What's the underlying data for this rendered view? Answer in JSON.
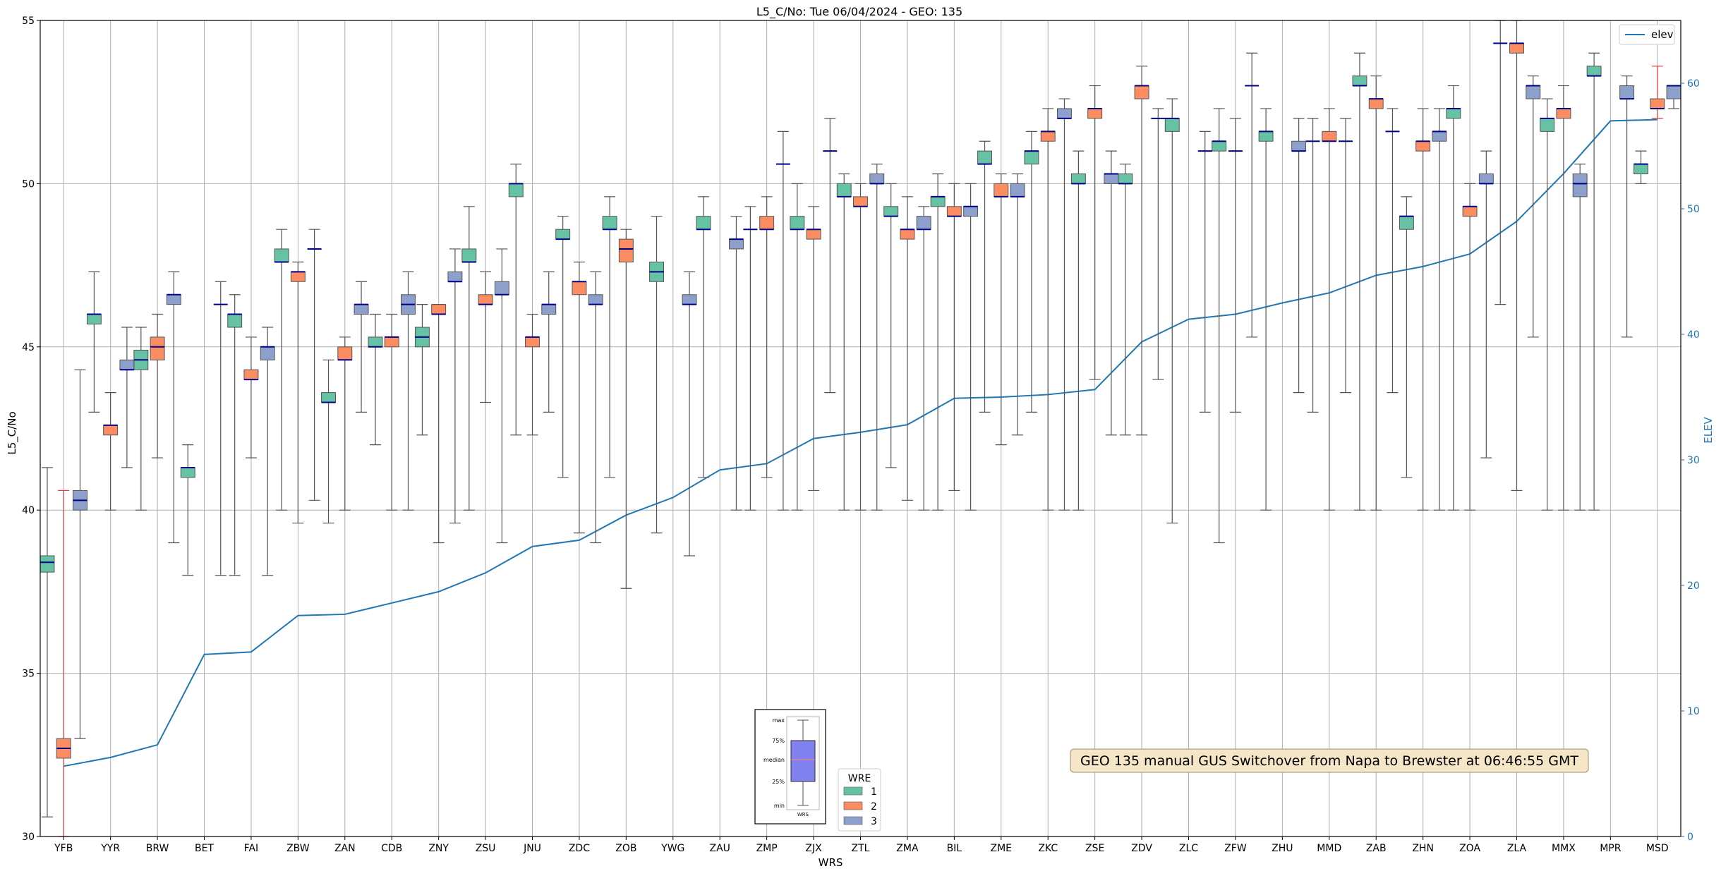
{
  "chart_data": {
    "type": "box",
    "title": "L5_C/No: Tue 06/04/2024 - GEO: 135",
    "xlabel": "WRS",
    "ylabel": "L5_C/No",
    "y2label": "ELEV",
    "ylim": [
      30,
      55
    ],
    "y2lim": [
      0,
      65
    ],
    "yticks": [
      "30",
      "35",
      "40",
      "45",
      "50",
      "55"
    ],
    "y2ticks": [
      "0",
      "10",
      "20",
      "30",
      "40",
      "50",
      "60"
    ],
    "grid": true,
    "colors": {
      "wre1": "#66c2a5",
      "wre2": "#fc8d62",
      "wre3": "#8da0cb",
      "elev": "#1f77b4",
      "median": "#00008b",
      "outlier_whisker": "#e53935",
      "axis_right": "#1f77b4"
    },
    "categories": [
      "YFB",
      "YYR",
      "BRW",
      "BET",
      "FAI",
      "ZBW",
      "ZAN",
      "CDB",
      "ZNY",
      "ZSU",
      "JNU",
      "ZDC",
      "ZOB",
      "YWG",
      "ZAU",
      "ZMP",
      "ZJX",
      "ZTL",
      "ZMA",
      "BIL",
      "ZME",
      "ZKC",
      "ZSE",
      "ZDV",
      "ZLC",
      "ZFW",
      "ZHU",
      "MMD",
      "ZAB",
      "ZHN",
      "ZOA",
      "ZLA",
      "MMX",
      "MPR",
      "MSD"
    ],
    "elev": [
      5.6,
      6.3,
      7.3,
      14.5,
      14.7,
      17.6,
      17.7,
      18.6,
      19.5,
      21,
      23.1,
      23.6,
      25.6,
      27,
      29.2,
      29.7,
      31.7,
      32.2,
      32.8,
      34.9,
      35,
      35.2,
      35.6,
      39.4,
      41.2,
      41.6,
      42.5,
      43.3,
      44.7,
      45.4,
      46.4,
      49,
      52.8,
      57,
      57.1
    ],
    "series": [
      {
        "name": "1",
        "boxes": [
          {
            "i": 0,
            "min": 30.6,
            "q1": 38.1,
            "med": 38.4,
            "q3": 38.6,
            "max": 41.3
          },
          {
            "i": 1,
            "min": 43,
            "q1": 45.7,
            "med": 46,
            "q3": 46,
            "max": 47.3
          },
          {
            "i": 2,
            "min": 40,
            "q1": 44.3,
            "med": 44.6,
            "q3": 44.9,
            "max": 45.6
          },
          {
            "i": 3,
            "min": 38,
            "q1": 41,
            "med": 41.3,
            "q3": 41.3,
            "max": 42
          },
          {
            "i": 4,
            "min": 38,
            "q1": 45.6,
            "med": 46,
            "q3": 46,
            "max": 46.6
          },
          {
            "i": 5,
            "min": 40,
            "q1": 47.6,
            "med": 47.6,
            "q3": 48,
            "max": 48.6
          },
          {
            "i": 6,
            "min": 39.6,
            "q1": 43.3,
            "med": 43.3,
            "q3": 43.6,
            "max": 44.6
          },
          {
            "i": 7,
            "min": 42,
            "q1": 45,
            "med": 45,
            "q3": 45.3,
            "max": 46
          },
          {
            "i": 8,
            "min": 42.3,
            "q1": 45,
            "med": 45.3,
            "q3": 45.6,
            "max": 46.3
          },
          {
            "i": 9,
            "min": 40,
            "q1": 47.6,
            "med": 47.6,
            "q3": 48,
            "max": 49.3
          },
          {
            "i": 10,
            "min": 42.3,
            "q1": 49.6,
            "med": 50,
            "q3": 50,
            "max": 50.6
          },
          {
            "i": 11,
            "min": 41,
            "q1": 48.3,
            "med": 48.3,
            "q3": 48.6,
            "max": 49
          },
          {
            "i": 12,
            "min": 41,
            "q1": 48.6,
            "med": 48.6,
            "q3": 49,
            "max": 49.6
          },
          {
            "i": 13,
            "min": 39.3,
            "q1": 47,
            "med": 47.3,
            "q3": 47.6,
            "max": 49
          },
          {
            "i": 14,
            "min": 41,
            "q1": 48.6,
            "med": 48.6,
            "q3": 49,
            "max": 49.6
          },
          {
            "i": 15,
            "min": 40,
            "q1": 48.6,
            "med": 48.6,
            "q3": 48.6,
            "max": 49.3
          },
          {
            "i": 16,
            "min": 40,
            "q1": 48.6,
            "med": 48.6,
            "q3": 49,
            "max": 50
          },
          {
            "i": 17,
            "min": 40,
            "q1": 49.6,
            "med": 49.6,
            "q3": 50,
            "max": 50.3
          },
          {
            "i": 18,
            "min": 41.3,
            "q1": 49,
            "med": 49,
            "q3": 49.3,
            "max": 50
          },
          {
            "i": 19,
            "min": 40,
            "q1": 49.3,
            "med": 49.6,
            "q3": 49.6,
            "max": 50.3
          },
          {
            "i": 20,
            "min": 43,
            "q1": 50.6,
            "med": 50.6,
            "q3": 51,
            "max": 51.3
          },
          {
            "i": 21,
            "min": 43,
            "q1": 50.6,
            "med": 51,
            "q3": 51,
            "max": 51.6
          },
          {
            "i": 22,
            "min": 40,
            "q1": 50,
            "med": 50,
            "q3": 50.3,
            "max": 51
          },
          {
            "i": 23,
            "min": 42.3,
            "q1": 50,
            "med": 50,
            "q3": 50.3,
            "max": 50.6
          },
          {
            "i": 24,
            "min": 39.6,
            "q1": 51.6,
            "med": 52,
            "q3": 52,
            "max": 52.6
          },
          {
            "i": 25,
            "min": 39,
            "q1": 51,
            "med": 51.3,
            "q3": 51.3,
            "max": 52.3
          },
          {
            "i": 26,
            "min": 40,
            "q1": 51.3,
            "med": 51.6,
            "q3": 51.6,
            "max": 52.3
          },
          {
            "i": 27,
            "min": 43,
            "q1": 51.3,
            "med": 51.3,
            "q3": 51.3,
            "max": 52
          },
          {
            "i": 28,
            "min": 40,
            "q1": 53,
            "med": 53,
            "q3": 53.3,
            "max": 54
          },
          {
            "i": 29,
            "min": 41,
            "q1": 48.6,
            "med": 49,
            "q3": 49,
            "max": 49.6
          },
          {
            "i": 30,
            "min": 40,
            "q1": 52,
            "med": 52.3,
            "q3": 52.3,
            "max": 53
          },
          {
            "i": 31,
            "min": 46.3,
            "q1": 54.3,
            "med": 54.3,
            "q3": 54.3,
            "max": 55
          },
          {
            "i": 32,
            "min": 40,
            "q1": 51.6,
            "med": 52,
            "q3": 52,
            "max": 52.6
          },
          {
            "i": 33,
            "min": 40,
            "q1": 53.3,
            "med": 53.3,
            "q3": 53.6,
            "max": 54
          },
          {
            "i": 34,
            "min": 50,
            "q1": 50.3,
            "med": 50.6,
            "q3": 50.6,
            "max": 51
          }
        ]
      },
      {
        "name": "2",
        "boxes": [
          {
            "i": 0,
            "min": 30,
            "q1": 32.4,
            "med": 32.7,
            "q3": 33,
            "max": 40.6,
            "red": true
          },
          {
            "i": 1,
            "min": 40,
            "q1": 42.3,
            "med": 42.6,
            "q3": 42.6,
            "max": 43.6
          },
          {
            "i": 2,
            "min": 41.6,
            "q1": 44.6,
            "med": 45,
            "q3": 45.3,
            "max": 46
          },
          {
            "i": 4,
            "min": 41.6,
            "q1": 44,
            "med": 44,
            "q3": 44.3,
            "max": 45.3
          },
          {
            "i": 5,
            "min": 39.6,
            "q1": 47,
            "med": 47.3,
            "q3": 47.3,
            "max": 47.6
          },
          {
            "i": 6,
            "min": 40,
            "q1": 44.6,
            "med": 44.6,
            "q3": 45,
            "max": 45.3
          },
          {
            "i": 7,
            "min": 40,
            "q1": 45,
            "med": 45.3,
            "q3": 45.3,
            "max": 46
          },
          {
            "i": 8,
            "min": 39,
            "q1": 46,
            "med": 46,
            "q3": 46.3,
            "max": 46.3
          },
          {
            "i": 9,
            "min": 43.3,
            "q1": 46.3,
            "med": 46.3,
            "q3": 46.6,
            "max": 47.3
          },
          {
            "i": 10,
            "min": 42.3,
            "q1": 45,
            "med": 45.3,
            "q3": 45.3,
            "max": 46
          },
          {
            "i": 11,
            "min": 39.3,
            "q1": 46.6,
            "med": 47,
            "q3": 47,
            "max": 47.6
          },
          {
            "i": 12,
            "min": 37.6,
            "q1": 47.6,
            "med": 48,
            "q3": 48.3,
            "max": 48.6
          },
          {
            "i": 15,
            "min": 41,
            "q1": 48.6,
            "med": 48.6,
            "q3": 49,
            "max": 49.6
          },
          {
            "i": 16,
            "min": 40.6,
            "q1": 48.3,
            "med": 48.6,
            "q3": 48.6,
            "max": 49.3
          },
          {
            "i": 17,
            "min": 40,
            "q1": 49.3,
            "med": 49.3,
            "q3": 49.6,
            "max": 50
          },
          {
            "i": 18,
            "min": 40.3,
            "q1": 48.3,
            "med": 48.6,
            "q3": 48.6,
            "max": 49.6
          },
          {
            "i": 19,
            "min": 40.6,
            "q1": 49,
            "med": 49,
            "q3": 49.3,
            "max": 50
          },
          {
            "i": 20,
            "min": 42,
            "q1": 49.6,
            "med": 49.6,
            "q3": 50,
            "max": 50.3
          },
          {
            "i": 21,
            "min": 40,
            "q1": 51.3,
            "med": 51.6,
            "q3": 51.6,
            "max": 52.3
          },
          {
            "i": 22,
            "min": 44,
            "q1": 52,
            "med": 52.3,
            "q3": 52.3,
            "max": 53
          },
          {
            "i": 23,
            "min": 42.3,
            "q1": 52.6,
            "med": 53,
            "q3": 53,
            "max": 53.6
          },
          {
            "i": 25,
            "min": 43,
            "q1": 51,
            "med": 51,
            "q3": 51,
            "max": 52
          },
          {
            "i": 27,
            "min": 40,
            "q1": 51.3,
            "med": 51.3,
            "q3": 51.6,
            "max": 52.3
          },
          {
            "i": 28,
            "min": 40,
            "q1": 52.3,
            "med": 52.6,
            "q3": 52.6,
            "max": 53.3
          },
          {
            "i": 29,
            "min": 40,
            "q1": 51,
            "med": 51.3,
            "q3": 51.3,
            "max": 52.3
          },
          {
            "i": 30,
            "min": 40,
            "q1": 49,
            "med": 49.3,
            "q3": 49.3,
            "max": 50
          },
          {
            "i": 31,
            "min": 40.6,
            "q1": 54,
            "med": 54.3,
            "q3": 54.3,
            "max": 55
          },
          {
            "i": 32,
            "min": 40,
            "q1": 52,
            "med": 52.3,
            "q3": 52.3,
            "max": 53
          },
          {
            "i": 34,
            "min": 52,
            "q1": 52.3,
            "med": 52.3,
            "q3": 52.6,
            "max": 53.6,
            "red": true
          }
        ]
      },
      {
        "name": "3",
        "boxes": [
          {
            "i": 0,
            "min": 33,
            "q1": 40,
            "med": 40.3,
            "q3": 40.6,
            "max": 44.3
          },
          {
            "i": 1,
            "min": 41.3,
            "q1": 44.3,
            "med": 44.3,
            "q3": 44.6,
            "max": 45.6
          },
          {
            "i": 2,
            "min": 39,
            "q1": 46.3,
            "med": 46.6,
            "q3": 46.6,
            "max": 47.3
          },
          {
            "i": 3,
            "min": 38,
            "q1": 46.3,
            "med": 46.3,
            "q3": 46.3,
            "max": 47
          },
          {
            "i": 4,
            "min": 38,
            "q1": 44.6,
            "med": 45,
            "q3": 45,
            "max": 45.6
          },
          {
            "i": 5,
            "min": 40.3,
            "q1": 48,
            "med": 48,
            "q3": 48,
            "max": 48.6
          },
          {
            "i": 6,
            "min": 43,
            "q1": 46,
            "med": 46.3,
            "q3": 46.3,
            "max": 47
          },
          {
            "i": 7,
            "min": 40,
            "q1": 46,
            "med": 46.3,
            "q3": 46.6,
            "max": 47.3
          },
          {
            "i": 8,
            "min": 39.6,
            "q1": 47,
            "med": 47,
            "q3": 47.3,
            "max": 48
          },
          {
            "i": 9,
            "min": 39,
            "q1": 46.6,
            "med": 46.6,
            "q3": 47,
            "max": 48
          },
          {
            "i": 10,
            "min": 43,
            "q1": 46,
            "med": 46.3,
            "q3": 46.3,
            "max": 47.3
          },
          {
            "i": 11,
            "min": 39,
            "q1": 46.3,
            "med": 46.3,
            "q3": 46.6,
            "max": 47.3
          },
          {
            "i": 13,
            "min": 38.6,
            "q1": 46.3,
            "med": 46.3,
            "q3": 46.6,
            "max": 47.3
          },
          {
            "i": 14,
            "min": 40,
            "q1": 48,
            "med": 48.3,
            "q3": 48.3,
            "max": 49
          },
          {
            "i": 15,
            "min": 40,
            "q1": 50.6,
            "med": 50.6,
            "q3": 50.6,
            "max": 51.6
          },
          {
            "i": 16,
            "min": 43.6,
            "q1": 51,
            "med": 51,
            "q3": 51,
            "max": 52
          },
          {
            "i": 17,
            "min": 40,
            "q1": 50,
            "med": 50,
            "q3": 50.3,
            "max": 50.6
          },
          {
            "i": 18,
            "min": 40,
            "q1": 48.6,
            "med": 48.6,
            "q3": 49,
            "max": 49.3
          },
          {
            "i": 19,
            "min": 40,
            "q1": 49,
            "med": 49.3,
            "q3": 49.3,
            "max": 50
          },
          {
            "i": 20,
            "min": 42.3,
            "q1": 49.6,
            "med": 49.6,
            "q3": 50,
            "max": 50.3
          },
          {
            "i": 21,
            "min": 40,
            "q1": 52,
            "med": 52,
            "q3": 52.3,
            "max": 52.6
          },
          {
            "i": 22,
            "min": 42.3,
            "q1": 50,
            "med": 50.3,
            "q3": 50.3,
            "max": 51
          },
          {
            "i": 23,
            "min": 44,
            "q1": 52,
            "med": 52,
            "q3": 52,
            "max": 52.3
          },
          {
            "i": 24,
            "min": 43,
            "q1": 51,
            "med": 51,
            "q3": 51,
            "max": 51.6
          },
          {
            "i": 25,
            "min": 45.3,
            "q1": 53,
            "med": 53,
            "q3": 53,
            "max": 54
          },
          {
            "i": 26,
            "min": 43.6,
            "q1": 51,
            "med": 51,
            "q3": 51.3,
            "max": 52
          },
          {
            "i": 27,
            "min": 43.6,
            "q1": 51.3,
            "med": 51.3,
            "q3": 51.3,
            "max": 52
          },
          {
            "i": 28,
            "min": 43.6,
            "q1": 51.6,
            "med": 51.6,
            "q3": 51.6,
            "max": 52.3
          },
          {
            "i": 29,
            "min": 40,
            "q1": 51.3,
            "med": 51.6,
            "q3": 51.6,
            "max": 52.3
          },
          {
            "i": 30,
            "min": 41.6,
            "q1": 50,
            "med": 50,
            "q3": 50.3,
            "max": 51
          },
          {
            "i": 31,
            "min": 45.3,
            "q1": 52.6,
            "med": 53,
            "q3": 53,
            "max": 53.3
          },
          {
            "i": 32,
            "min": 40,
            "q1": 49.6,
            "med": 50,
            "q3": 50.3,
            "max": 50.6
          },
          {
            "i": 33,
            "min": 45.3,
            "q1": 52.6,
            "med": 52.6,
            "q3": 53,
            "max": 53.3
          },
          {
            "i": 34,
            "min": 52.3,
            "q1": 52.6,
            "med": 53,
            "q3": 53,
            "max": 53
          }
        ]
      }
    ],
    "legend_elev": {
      "label": "elev",
      "position": "top-right"
    },
    "legend_wre": {
      "title": "WRE",
      "items": [
        "1",
        "2",
        "3"
      ],
      "position": "bottom-center"
    },
    "annotation": "GEO 135 manual GUS Switchover from Napa to Brewster at 06:46:55 GMT",
    "inset_key": {
      "labels": [
        "max",
        "75%",
        "median",
        "25%",
        "min"
      ],
      "xlabel": "WRS"
    }
  }
}
